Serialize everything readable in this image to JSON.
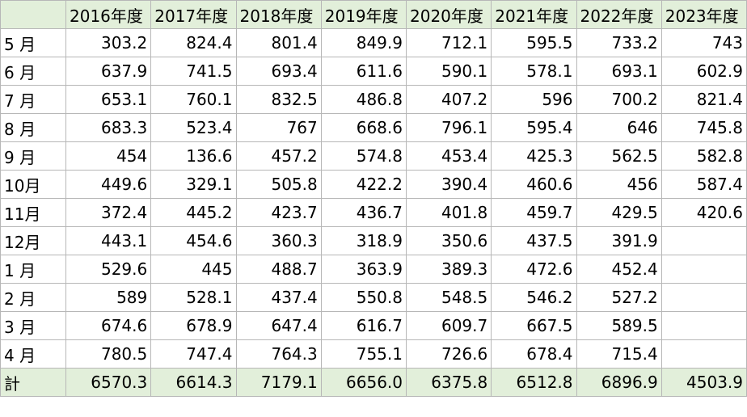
{
  "colors": {
    "header_fill": "#e2efda",
    "total_fill": "#e2efda",
    "gridline": "#b7b7b7"
  },
  "headers": [
    "2016年度",
    "2017年度",
    "2018年度",
    "2019年度",
    "2020年度",
    "2021年度",
    "2022年度",
    "2023年度"
  ],
  "rows": [
    {
      "month": "5 月",
      "values": [
        "303.2",
        "824.4",
        "801.4",
        "849.9",
        "712.1",
        "595.5",
        "733.2",
        "743"
      ]
    },
    {
      "month": "6 月",
      "values": [
        "637.9",
        "741.5",
        "693.4",
        "611.6",
        "590.1",
        "578.1",
        "693.1",
        "602.9"
      ]
    },
    {
      "month": "7 月",
      "values": [
        "653.1",
        "760.1",
        "832.5",
        "486.8",
        "407.2",
        "596",
        "700.2",
        "821.4"
      ]
    },
    {
      "month": "8 月",
      "values": [
        "683.3",
        "523.4",
        "767",
        "668.6",
        "796.1",
        "595.4",
        "646",
        "745.8"
      ]
    },
    {
      "month": "9 月",
      "values": [
        "454",
        "136.6",
        "457.2",
        "574.8",
        "453.4",
        "425.3",
        "562.5",
        "582.8"
      ]
    },
    {
      "month": "10月",
      "values": [
        "449.6",
        "329.1",
        "505.8",
        "422.2",
        "390.4",
        "460.6",
        "456",
        "587.4"
      ]
    },
    {
      "month": "11月",
      "values": [
        "372.4",
        "445.2",
        "423.7",
        "436.7",
        "401.8",
        "459.7",
        "429.5",
        "420.6"
      ]
    },
    {
      "month": "12月",
      "values": [
        "443.1",
        "454.6",
        "360.3",
        "318.9",
        "350.6",
        "437.5",
        "391.9",
        ""
      ]
    },
    {
      "month": "1 月",
      "values": [
        "529.6",
        "445",
        "488.7",
        "363.9",
        "389.3",
        "472.6",
        "452.4",
        ""
      ]
    },
    {
      "month": "2 月",
      "values": [
        "589",
        "528.1",
        "437.4",
        "550.8",
        "548.5",
        "546.2",
        "527.2",
        ""
      ]
    },
    {
      "month": "3 月",
      "values": [
        "674.6",
        "678.9",
        "647.4",
        "616.7",
        "609.7",
        "667.5",
        "589.5",
        ""
      ]
    },
    {
      "month": "4 月",
      "values": [
        "780.5",
        "747.4",
        "764.3",
        "755.1",
        "726.6",
        "678.4",
        "715.4",
        ""
      ]
    }
  ],
  "total": {
    "label": "計",
    "values": [
      "6570.3",
      "6614.3",
      "7179.1",
      "6656.0",
      "6375.8",
      "6512.8",
      "6896.9",
      "4503.9"
    ]
  }
}
